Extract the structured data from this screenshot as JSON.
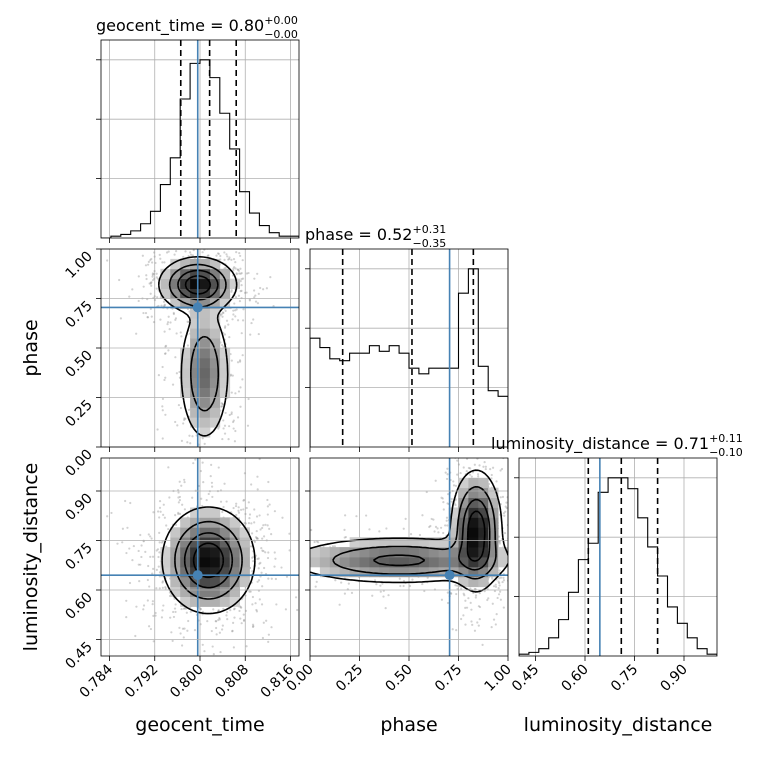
{
  "chart_data": {
    "type": "corner",
    "parameters": [
      {
        "name": "geocent_time",
        "axis_label": "geocent_time",
        "title_prefix": "geocent_time = ",
        "value": "0.80",
        "err_plus": "+0.00",
        "err_minus": "−0.00",
        "range": [
          0.7825,
          0.8175
        ],
        "truth": 0.7996,
        "quantiles": [
          0.7966,
          0.8017,
          0.8064
        ],
        "ticks": [
          0.784,
          0.792,
          0.8,
          0.808,
          0.816
        ],
        "tick_labels": [
          "0.784",
          "0.792",
          "0.800",
          "0.808",
          "0.816"
        ],
        "hist": [
          0,
          0.01,
          0.02,
          0.04,
          0.08,
          0.15,
          0.3,
          0.45,
          0.78,
          0.98,
          1.0,
          0.9,
          0.7,
          0.5,
          0.26,
          0.14,
          0.07,
          0.03,
          0.01,
          0.01
        ]
      },
      {
        "name": "phase",
        "axis_label": "phase",
        "title_prefix": "phase = ",
        "value": "0.52",
        "err_plus": "+0.31",
        "err_minus": "−0.35",
        "range": [
          0.0,
          1.0
        ],
        "truth": 0.705,
        "quantiles": [
          0.165,
          0.515,
          0.825
        ],
        "ticks": [
          0.0,
          0.25,
          0.5,
          0.75,
          1.0
        ],
        "tick_labels": [
          "0.00",
          "0.25",
          "0.50",
          "0.75",
          "1.00"
        ],
        "hist": [
          0.58,
          0.53,
          0.47,
          0.46,
          0.5,
          0.5,
          0.54,
          0.51,
          0.54,
          0.5,
          0.42,
          0.39,
          0.42,
          0.42,
          0.42,
          0.82,
          0.95,
          0.43,
          0.3,
          0.27
        ]
      },
      {
        "name": "luminosity_distance",
        "axis_label": "luminosity_distance",
        "title_prefix": "luminosity_distance = ",
        "value": "0.71",
        "err_plus": "+0.11",
        "err_minus": "−0.10",
        "range": [
          0.4,
          1.0
        ],
        "truth": 0.645,
        "quantiles": [
          0.61,
          0.71,
          0.82
        ],
        "ticks": [
          0.45,
          0.6,
          0.75,
          0.9
        ],
        "tick_labels": [
          "0.45",
          "0.60",
          "0.75",
          "0.90"
        ],
        "hist": [
          0.01,
          0.02,
          0.04,
          0.1,
          0.2,
          0.35,
          0.53,
          0.62,
          0.9,
          0.98,
          0.98,
          0.92,
          0.76,
          0.6,
          0.44,
          0.27,
          0.18,
          0.1,
          0.04,
          0.01
        ]
      }
    ],
    "contour_panels": [
      {
        "x": "geocent_time",
        "y": "phase",
        "peaks": [
          {
            "x": 0.7996,
            "y": 0.82,
            "sx": 0.0032,
            "sy": 0.065,
            "w": 1.0
          },
          {
            "x": 0.8008,
            "y": 0.37,
            "sx": 0.0022,
            "sy": 0.17,
            "w": 0.55
          }
        ]
      },
      {
        "x": "geocent_time",
        "y": "luminosity_distance",
        "peaks": [
          {
            "x": 0.8015,
            "y": 0.69,
            "sx": 0.0038,
            "sy": 0.075,
            "w": 1.0
          }
        ]
      },
      {
        "x": "phase",
        "y": "luminosity_distance",
        "peaks": [
          {
            "x": 0.84,
            "y": 0.78,
            "sx": 0.06,
            "sy": 0.085,
            "w": 1.0
          },
          {
            "x": 0.45,
            "y": 0.69,
            "sx": 0.28,
            "sy": 0.035,
            "w": 0.6
          }
        ]
      }
    ],
    "grid": true,
    "truth_color": "#4682b4",
    "line_color": "#000000"
  }
}
